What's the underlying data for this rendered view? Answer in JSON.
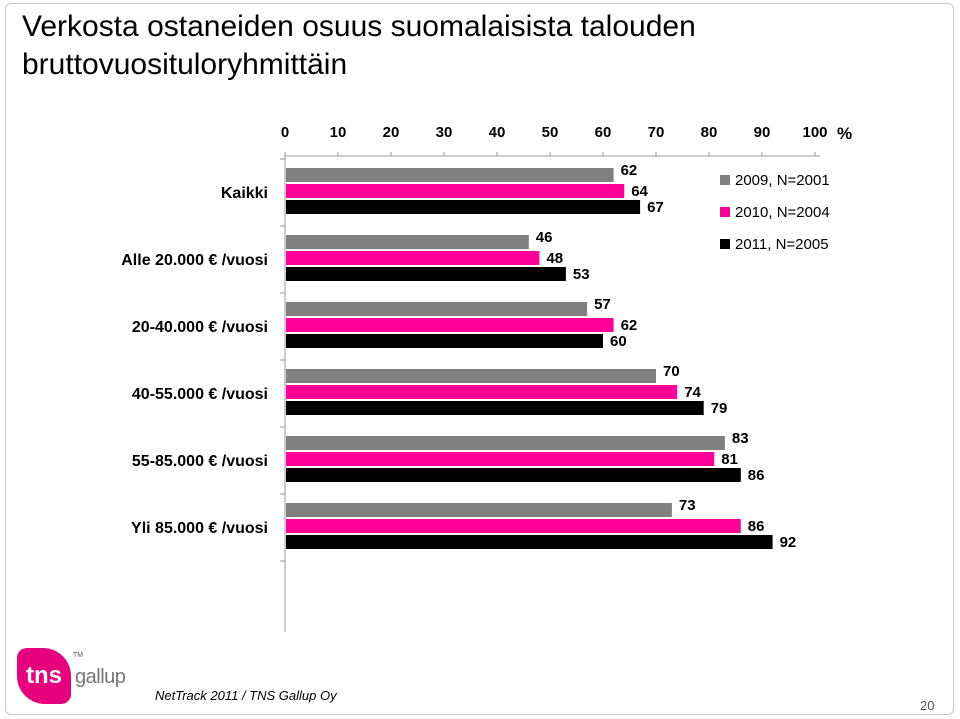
{
  "slide": {
    "title": "Verkosta ostaneiden osuus suomalaisista talouden bruttovuosituloryhmittäin",
    "footer": "NetTrack 2011 / TNS Gallup Oy",
    "page_number": "20"
  },
  "logo": {
    "mark_text": "tns",
    "tm": "TM",
    "word": "gallup"
  },
  "colors": {
    "2009": "#808080",
    "2010": "#ff0099",
    "2011": "#000000"
  },
  "chart_data": {
    "type": "bar",
    "orientation": "horizontal",
    "xlim": [
      0,
      100
    ],
    "x_ticks": [
      "0",
      "10",
      "20",
      "30",
      "40",
      "50",
      "60",
      "70",
      "80",
      "90",
      "100"
    ],
    "unit_label": "%",
    "categories": [
      "Kaikki",
      "Alle 20.000 € /vuosi",
      "20-40.000 € /vuosi",
      "40-55.000 € /vuosi",
      "55-85.000 € /vuosi",
      "Yli 85.000 € /vuosi"
    ],
    "series": [
      {
        "name": "2009, N=2001",
        "color": "#808080",
        "values": [
          62,
          46,
          57,
          70,
          83,
          73
        ]
      },
      {
        "name": "2010, N=2004",
        "color": "#ff0099",
        "values": [
          64,
          48,
          62,
          74,
          81,
          86
        ]
      },
      {
        "name": "2011, N=2005",
        "color": "#000000",
        "values": [
          67,
          53,
          60,
          79,
          86,
          92
        ]
      }
    ],
    "legend_position": "top-right",
    "grid": false
  }
}
